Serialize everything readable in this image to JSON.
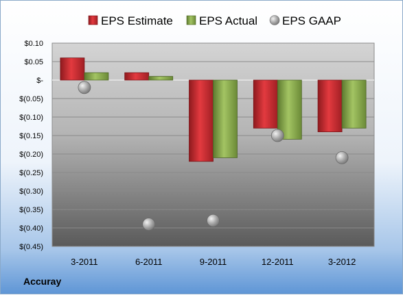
{
  "company": "Accuray",
  "chart_data": {
    "type": "bar",
    "categories": [
      "3-2011",
      "6-2011",
      "9-2011",
      "12-2011",
      "3-2012"
    ],
    "series": [
      {
        "name": "EPS Estimate",
        "kind": "bar",
        "color": "#c0282d",
        "values": [
          0.06,
          0.02,
          -0.22,
          -0.13,
          -0.14
        ]
      },
      {
        "name": "EPS Actual",
        "kind": "bar",
        "color": "#86a84a",
        "values": [
          0.02,
          0.01,
          -0.21,
          -0.16,
          -0.13
        ]
      },
      {
        "name": "EPS GAAP",
        "kind": "marker",
        "color": "#a6a6a6",
        "values": [
          -0.02,
          -0.39,
          -0.38,
          -0.15,
          -0.21
        ]
      }
    ],
    "ylim": [
      -0.45,
      0.1
    ],
    "yticks": [
      0.1,
      0.05,
      0.0,
      -0.05,
      -0.1,
      -0.15,
      -0.2,
      -0.25,
      -0.3,
      -0.35,
      -0.4,
      -0.45
    ],
    "ytick_labels": [
      "$0.10",
      "$0.05",
      "$-",
      "$(0.05)",
      "$(0.10)",
      "$(0.15)",
      "$(0.20)",
      "$(0.25)",
      "$(0.30)",
      "$(0.35)",
      "$(0.40)",
      "$(0.45)"
    ],
    "grid": true,
    "legend_position": "top"
  }
}
